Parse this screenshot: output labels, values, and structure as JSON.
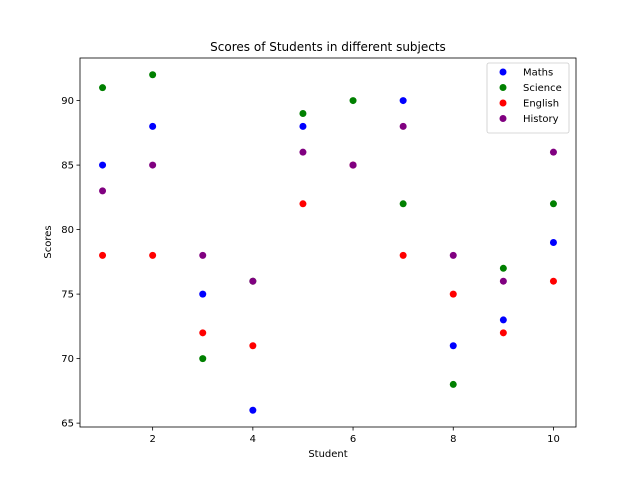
{
  "chart_data": {
    "type": "scatter",
    "title": "Scores of Students in different subjects",
    "xlabel": "Student",
    "ylabel": "Scores",
    "xlim": [
      0.55,
      10.45
    ],
    "ylim": [
      64.7,
      93.3
    ],
    "xticks": [
      2,
      4,
      6,
      8,
      10
    ],
    "yticks": [
      65,
      70,
      75,
      80,
      85,
      90
    ],
    "legend_position": "top-right",
    "x": [
      1,
      2,
      3,
      4,
      5,
      6,
      7,
      8,
      9,
      10
    ],
    "series": [
      {
        "name": "Maths",
        "color": "#0000ff",
        "values": [
          85,
          88,
          75,
          66,
          88,
          85,
          90,
          71,
          73,
          79
        ]
      },
      {
        "name": "Science",
        "color": "#008000",
        "values": [
          91,
          92,
          70,
          76,
          89,
          90,
          82,
          68,
          77,
          82
        ]
      },
      {
        "name": "English",
        "color": "#ff0000",
        "values": [
          78,
          78,
          72,
          71,
          82,
          85,
          78,
          75,
          72,
          76
        ]
      },
      {
        "name": "History",
        "color": "#800080",
        "values": [
          83,
          85,
          78,
          76,
          86,
          85,
          88,
          78,
          76,
          86
        ]
      }
    ]
  }
}
